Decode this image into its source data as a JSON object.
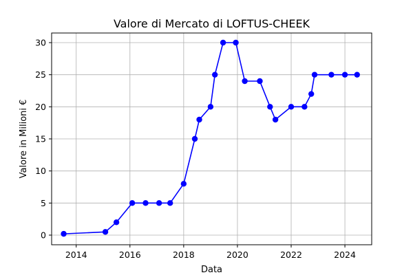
{
  "chart_data": {
    "type": "line",
    "title": "Valore di Mercato di LOFTUS-CHEEK",
    "xlabel": "Data",
    "ylabel": "Valore in Milioni €",
    "x_ticks": [
      "2014",
      "2016",
      "2018",
      "2020",
      "2022",
      "2024"
    ],
    "y_ticks": [
      "0",
      "5",
      "10",
      "15",
      "20",
      "25",
      "30"
    ],
    "xlim": [
      "2013-02-01",
      "2024-12-31"
    ],
    "ylim": [
      -1.5,
      31.5
    ],
    "grid": true,
    "line_color": "#0000ff",
    "series": [
      {
        "x": [
          "2013-07-15",
          "2015-02-01",
          "2015-07-01",
          "2016-02-01",
          "2016-08-01",
          "2017-02-01",
          "2017-07-01",
          "2018-01-01",
          "2018-06-01",
          "2018-08-01",
          "2019-01-01",
          "2019-03-01",
          "2019-06-20",
          "2019-12-10",
          "2020-04-10",
          "2020-11-01",
          "2021-03-20",
          "2021-06-01",
          "2022-01-01",
          "2022-07-01",
          "2022-10-01",
          "2022-11-15",
          "2023-07-01",
          "2024-01-01",
          "2024-06-15"
        ],
        "y": [
          0.2,
          0.5,
          2,
          5,
          5,
          5,
          5,
          8,
          15,
          18,
          20,
          25,
          30,
          30,
          24,
          24,
          20,
          18,
          20,
          20,
          22,
          25,
          25,
          25,
          25
        ]
      }
    ]
  }
}
